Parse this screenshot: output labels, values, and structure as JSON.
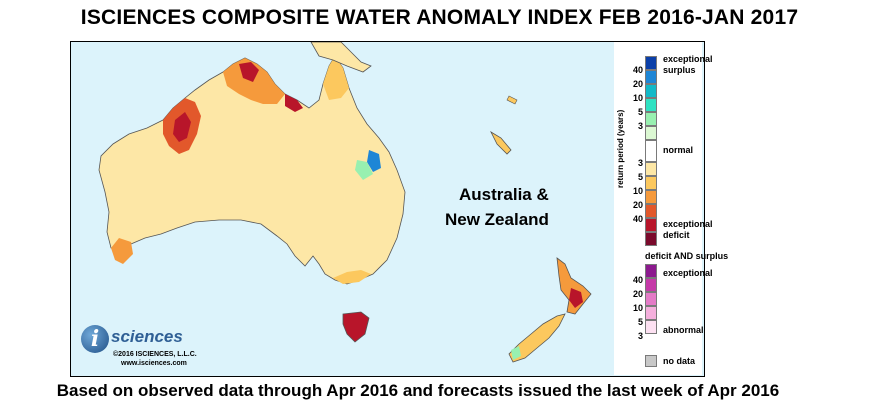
{
  "title": "ISCIENCES COMPOSITE WATER ANOMALY INDEX FEB 2016-JAN 2017",
  "footer": "Based on observed data through Apr 2016 and forecasts issued the last week of Apr 2016",
  "map": {
    "region_label_line1": "Australia &",
    "region_label_line2": "New Zealand",
    "ocean_color": "#dcf3fb",
    "land_normal_color": "#fde7a6"
  },
  "logo": {
    "glyph": "i",
    "word": "sciences",
    "copyright": "©2016 ISCIENCES, L.L.C.",
    "url": "www.isciences.com"
  },
  "legend": {
    "return_period_label": "return period (years)",
    "surplus_label_1": "exceptional",
    "surplus_label_2": "surplus",
    "normal_label": "normal",
    "deficit_label_1": "exceptional",
    "deficit_label_2": "deficit",
    "surplus_ticks": [
      "40",
      "20",
      "10",
      "5",
      "3"
    ],
    "deficit_ticks": [
      "3",
      "5",
      "10",
      "20",
      "40"
    ],
    "surplus_colors": [
      "#0b3fa8",
      "#1e86d6",
      "#12b9c8",
      "#2fe2c2",
      "#98f0b0",
      "#dcf8d3"
    ],
    "normal_color": "#ffffff",
    "deficit_colors": [
      "#fde7a6",
      "#fcc85e",
      "#f59a3c",
      "#e2582b",
      "#b8152a",
      "#7a0a2c"
    ],
    "das_title": "deficit AND surplus",
    "das_top_label": "exceptional",
    "das_bottom_label": "abnormal",
    "das_ticks": [
      "40",
      "20",
      "10",
      "5",
      "3"
    ],
    "das_colors": [
      "#8c1a8e",
      "#c53aa8",
      "#e47bc7",
      "#f5b0dd",
      "#fde1f2"
    ],
    "no_data_label": "no data",
    "no_data_color": "#c8c8c8"
  }
}
